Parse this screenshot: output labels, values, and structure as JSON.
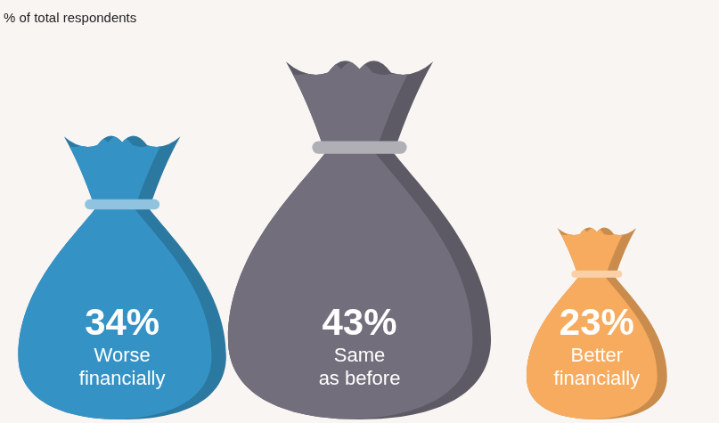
{
  "chart_data": {
    "type": "bar",
    "subtitle": "% of total respondents",
    "categories": [
      "Worse financially",
      "Same as before",
      "Better financially"
    ],
    "values": [
      34,
      43,
      23
    ],
    "value_labels": [
      "34%",
      "43%",
      "23%"
    ],
    "colors": [
      "#3592c4",
      "#726e7b",
      "#f6ab5e"
    ],
    "ylim": [
      0,
      45
    ],
    "tick_labels": false,
    "grid": false,
    "data_labels": true
  }
}
